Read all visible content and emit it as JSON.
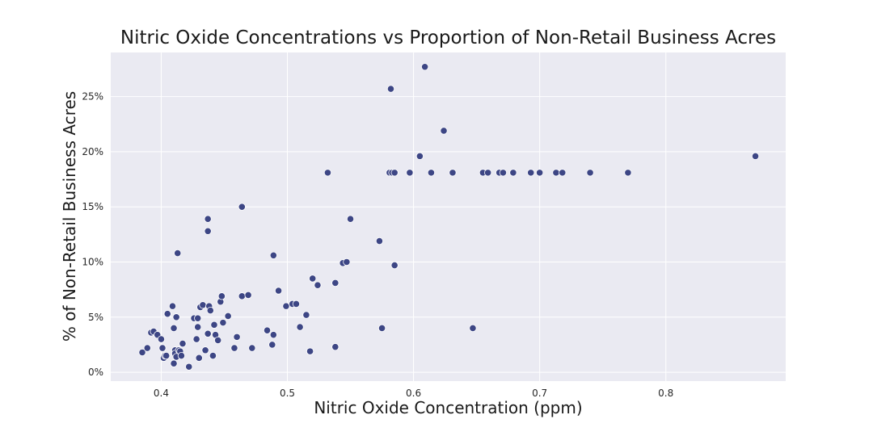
{
  "chart_data": {
    "type": "scatter",
    "title": "Nitric Oxide Concentrations vs Proportion of Non-Retail Business Acres",
    "xlabel": "Nitric Oxide Concentration (ppm)",
    "ylabel": "% of Non-Retail Business Acres",
    "xlim": [
      0.36,
      0.895
    ],
    "ylim": [
      -0.8,
      29.0
    ],
    "x_ticks": [
      0.4,
      0.5,
      0.6,
      0.7,
      0.8
    ],
    "x_tick_labels": [
      "0.4",
      "0.5",
      "0.6",
      "0.7",
      "0.8"
    ],
    "y_ticks": [
      0,
      5,
      10,
      15,
      20,
      25
    ],
    "y_tick_labels": [
      "0%",
      "5%",
      "10%",
      "15%",
      "20%",
      "25%"
    ],
    "grid": true,
    "legend": "none",
    "colors": {
      "point": "#3d4685",
      "point_edge": "#ffffff",
      "plot_background": "#eaeaf2",
      "grid": "#ffffff"
    },
    "x": [
      0.385,
      0.389,
      0.392,
      0.394,
      0.397,
      0.4,
      0.401,
      0.402,
      0.403,
      0.404,
      0.405,
      0.409,
      0.41,
      0.41,
      0.411,
      0.411,
      0.412,
      0.412,
      0.413,
      0.414,
      0.415,
      0.416,
      0.417,
      0.422,
      0.426,
      0.428,
      0.429,
      0.429,
      0.43,
      0.431,
      0.433,
      0.435,
      0.437,
      0.437,
      0.437,
      0.438,
      0.439,
      0.441,
      0.442,
      0.443,
      0.445,
      0.447,
      0.448,
      0.449,
      0.453,
      0.458,
      0.46,
      0.464,
      0.464,
      0.469,
      0.472,
      0.484,
      0.488,
      0.489,
      0.489,
      0.493,
      0.499,
      0.504,
      0.507,
      0.51,
      0.515,
      0.518,
      0.52,
      0.524,
      0.532,
      0.538,
      0.538,
      0.544,
      0.547,
      0.55,
      0.573,
      0.575,
      0.581,
      0.582,
      0.583,
      0.585,
      0.585,
      0.597,
      0.605,
      0.609,
      0.614,
      0.624,
      0.631,
      0.647,
      0.655,
      0.659,
      0.668,
      0.671,
      0.679,
      0.693,
      0.7,
      0.713,
      0.718,
      0.74,
      0.77,
      0.871
    ],
    "y": [
      1.8,
      2.2,
      3.6,
      3.7,
      3.4,
      3.0,
      2.2,
      1.3,
      1.5,
      1.5,
      5.3,
      6.0,
      4.0,
      0.8,
      2.0,
      1.7,
      5.0,
      1.4,
      10.8,
      2.0,
      1.9,
      1.5,
      2.6,
      0.5,
      4.9,
      3.0,
      4.9,
      4.1,
      1.3,
      5.9,
      6.1,
      2.0,
      3.5,
      13.9,
      12.8,
      6.0,
      5.6,
      1.5,
      4.3,
      3.4,
      2.9,
      6.4,
      6.9,
      4.5,
      5.1,
      2.2,
      3.2,
      15.0,
      6.9,
      7.0,
      2.2,
      3.8,
      2.5,
      3.4,
      10.6,
      7.4,
      6.0,
      6.2,
      6.2,
      4.1,
      5.2,
      1.9,
      8.5,
      7.9,
      18.1,
      8.1,
      2.3,
      9.9,
      10.0,
      13.9,
      11.9,
      4.0,
      18.1,
      25.7,
      18.1,
      18.1,
      9.7,
      18.1,
      19.6,
      27.7,
      18.1,
      21.9,
      18.1,
      4.0,
      18.1,
      18.1,
      18.1,
      18.1,
      18.1,
      18.1,
      18.1,
      18.1,
      18.1,
      18.1,
      18.1,
      19.6
    ]
  }
}
